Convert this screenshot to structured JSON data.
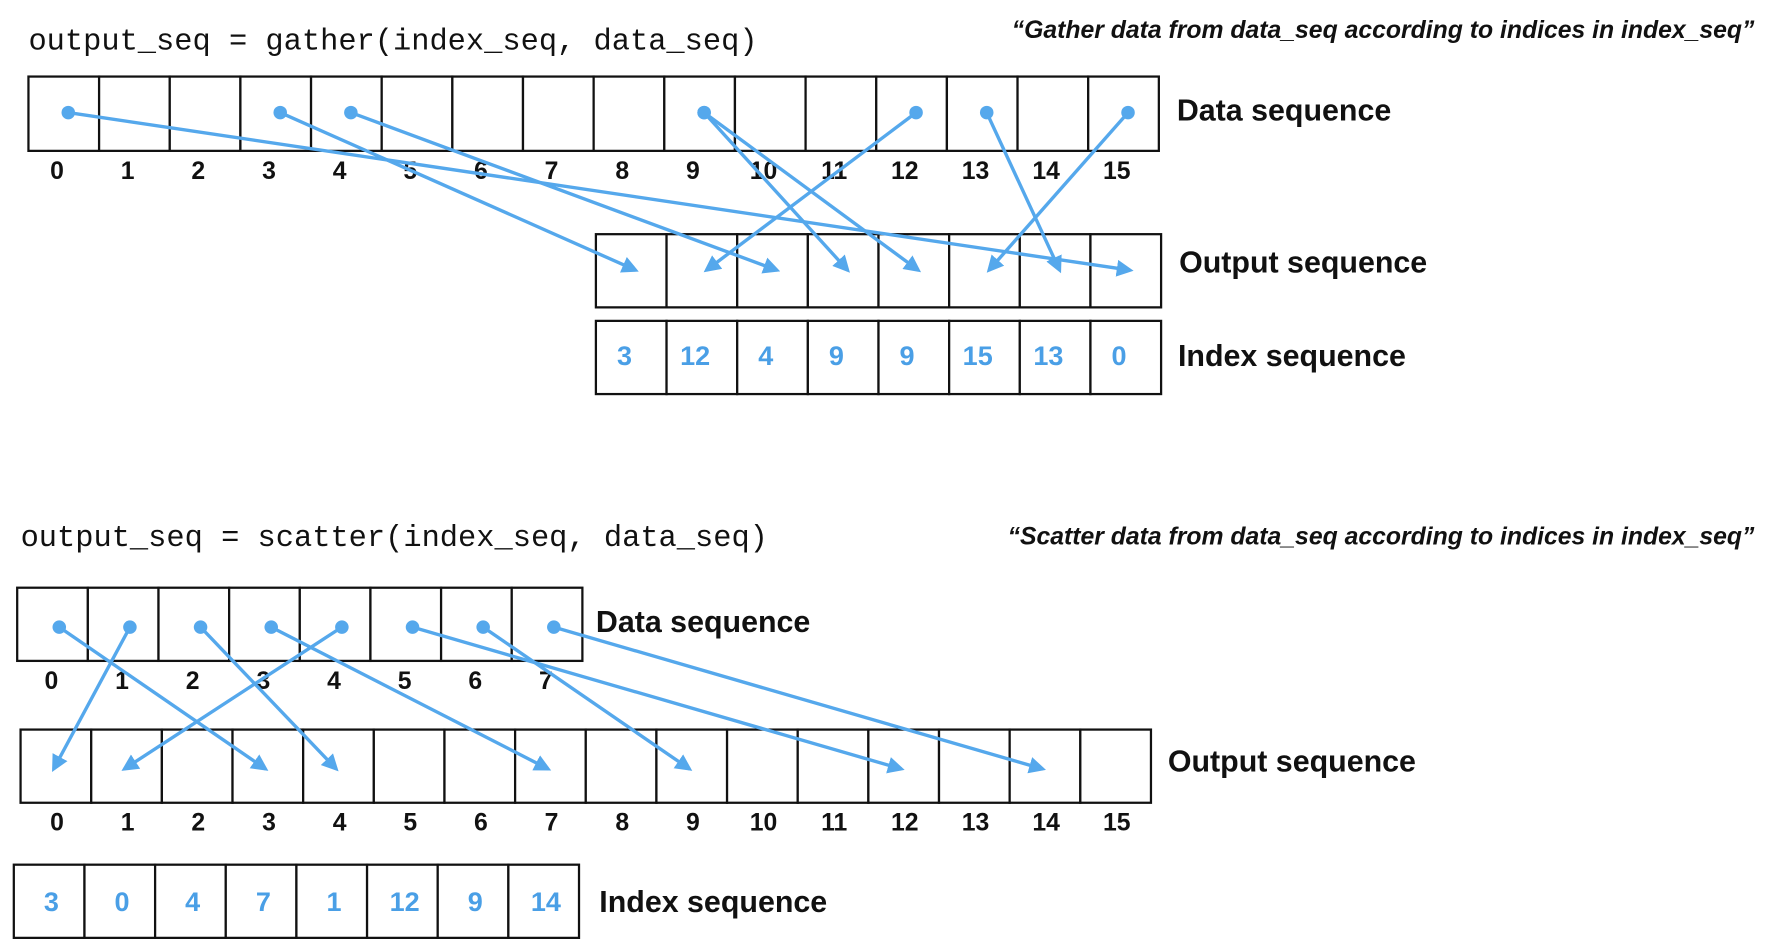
{
  "gather": {
    "code": "output_seq = gather(index_seq, data_seq)",
    "quote": "“Gather data from data_seq according to indices in index_seq”",
    "data_label": "Data sequence",
    "output_label": "Output sequence",
    "index_label": "Index sequence",
    "data_positions": [
      0,
      1,
      2,
      3,
      4,
      5,
      6,
      7,
      8,
      9,
      10,
      11,
      12,
      13,
      14,
      15
    ],
    "index_values": [
      3,
      12,
      4,
      9,
      9,
      15,
      13,
      0
    ]
  },
  "scatter": {
    "code": "output_seq = scatter(index_seq, data_seq)",
    "quote": "“Scatter data from data_seq according to indices in index_seq”",
    "data_label": "Data sequence",
    "output_label": "Output sequence",
    "index_label": "Index sequence",
    "data_positions": [
      0,
      1,
      2,
      3,
      4,
      5,
      6,
      7
    ],
    "output_positions": [
      0,
      1,
      2,
      3,
      4,
      5,
      6,
      7,
      8,
      9,
      10,
      11,
      12,
      13,
      14,
      15
    ],
    "index_values": [
      3,
      0,
      4,
      7,
      1,
      12,
      9,
      14
    ]
  }
}
